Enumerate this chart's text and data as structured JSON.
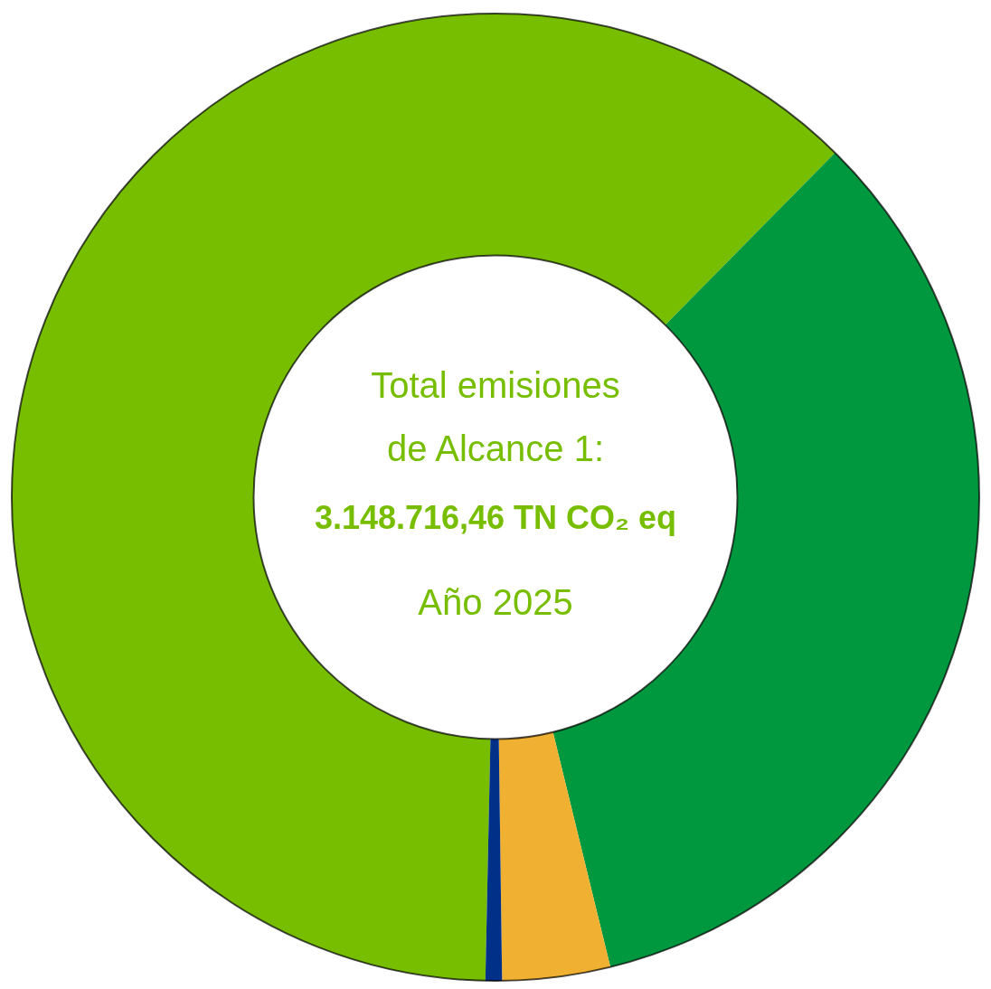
{
  "chart_data": {
    "type": "donut",
    "categories": [
      null,
      null,
      null,
      null
    ],
    "values": [
      62.05,
      33.8,
      3.6,
      0.55
    ],
    "colors": [
      "#78be00",
      "#00983f",
      "#f0b032",
      "#003087"
    ],
    "annotations": [
      "Total emisiones",
      "de Alcance 1:",
      "3.148.716,46 TN CO₂ eq",
      "Año 2025"
    ]
  }
}
